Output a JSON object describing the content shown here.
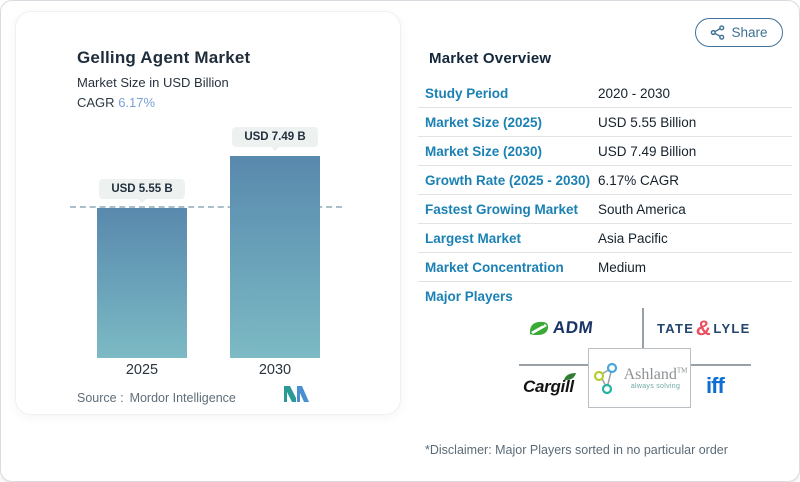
{
  "share": {
    "label": "Share"
  },
  "chart": {
    "title": "Gelling Agent Market",
    "subtitle": "Market Size in USD Billion",
    "cagr_label": "CAGR",
    "cagr_value": "6.17%",
    "source_label": "Source :",
    "source_value": "Mordor Intelligence"
  },
  "chart_data": {
    "type": "bar",
    "title": "Gelling Agent Market",
    "subtitle": "Market Size in USD Billion",
    "unit": "USD Billion",
    "categories": [
      "2025",
      "2030"
    ],
    "values": [
      5.55,
      7.49
    ],
    "value_labels": [
      "USD 5.55 B",
      "USD 7.49 B"
    ],
    "cagr": "6.17%",
    "ylim": [
      0,
      7.49
    ],
    "grid": false,
    "annotations": [
      "dashed reference line at 2025 value (5.55)"
    ],
    "bar_gradient_top": "#5989ad",
    "bar_gradient_bottom": "#7cbac4"
  },
  "overview": {
    "title": "Market Overview",
    "rows": [
      {
        "label": "Study Period",
        "value": "2020 - 2030"
      },
      {
        "label": "Market Size (2025)",
        "value": "USD 5.55 Billion"
      },
      {
        "label": "Market Size (2030)",
        "value": "USD 7.49 Billion"
      },
      {
        "label": "Growth Rate (2025 - 2030)",
        "value": "6.17% CAGR"
      },
      {
        "label": "Fastest Growing Market",
        "value": "South America"
      },
      {
        "label": "Largest Market",
        "value": "Asia Pacific"
      },
      {
        "label": "Market Concentration",
        "value": "Medium"
      }
    ],
    "major_players_label": "Major Players",
    "players": {
      "adm": "ADM",
      "tate_1": "TATE",
      "tate_amp": "&",
      "tate_2": "LYLE",
      "cargill": "Cargill",
      "ashland": "Ashland",
      "ashland_tm": "TM",
      "ashland_tagline": "always solving",
      "iff": "iff"
    },
    "disclaimer": "*Disclaimer: Major Players sorted in no particular order"
  },
  "colors": {
    "label_blue": "#1b81b4",
    "cagr_blue": "#7ba0d6",
    "share_blue": "#3f7195",
    "bar_top": "#5989ad",
    "bar_bottom": "#7cbac4",
    "pill_bg": "#edf1f0"
  }
}
